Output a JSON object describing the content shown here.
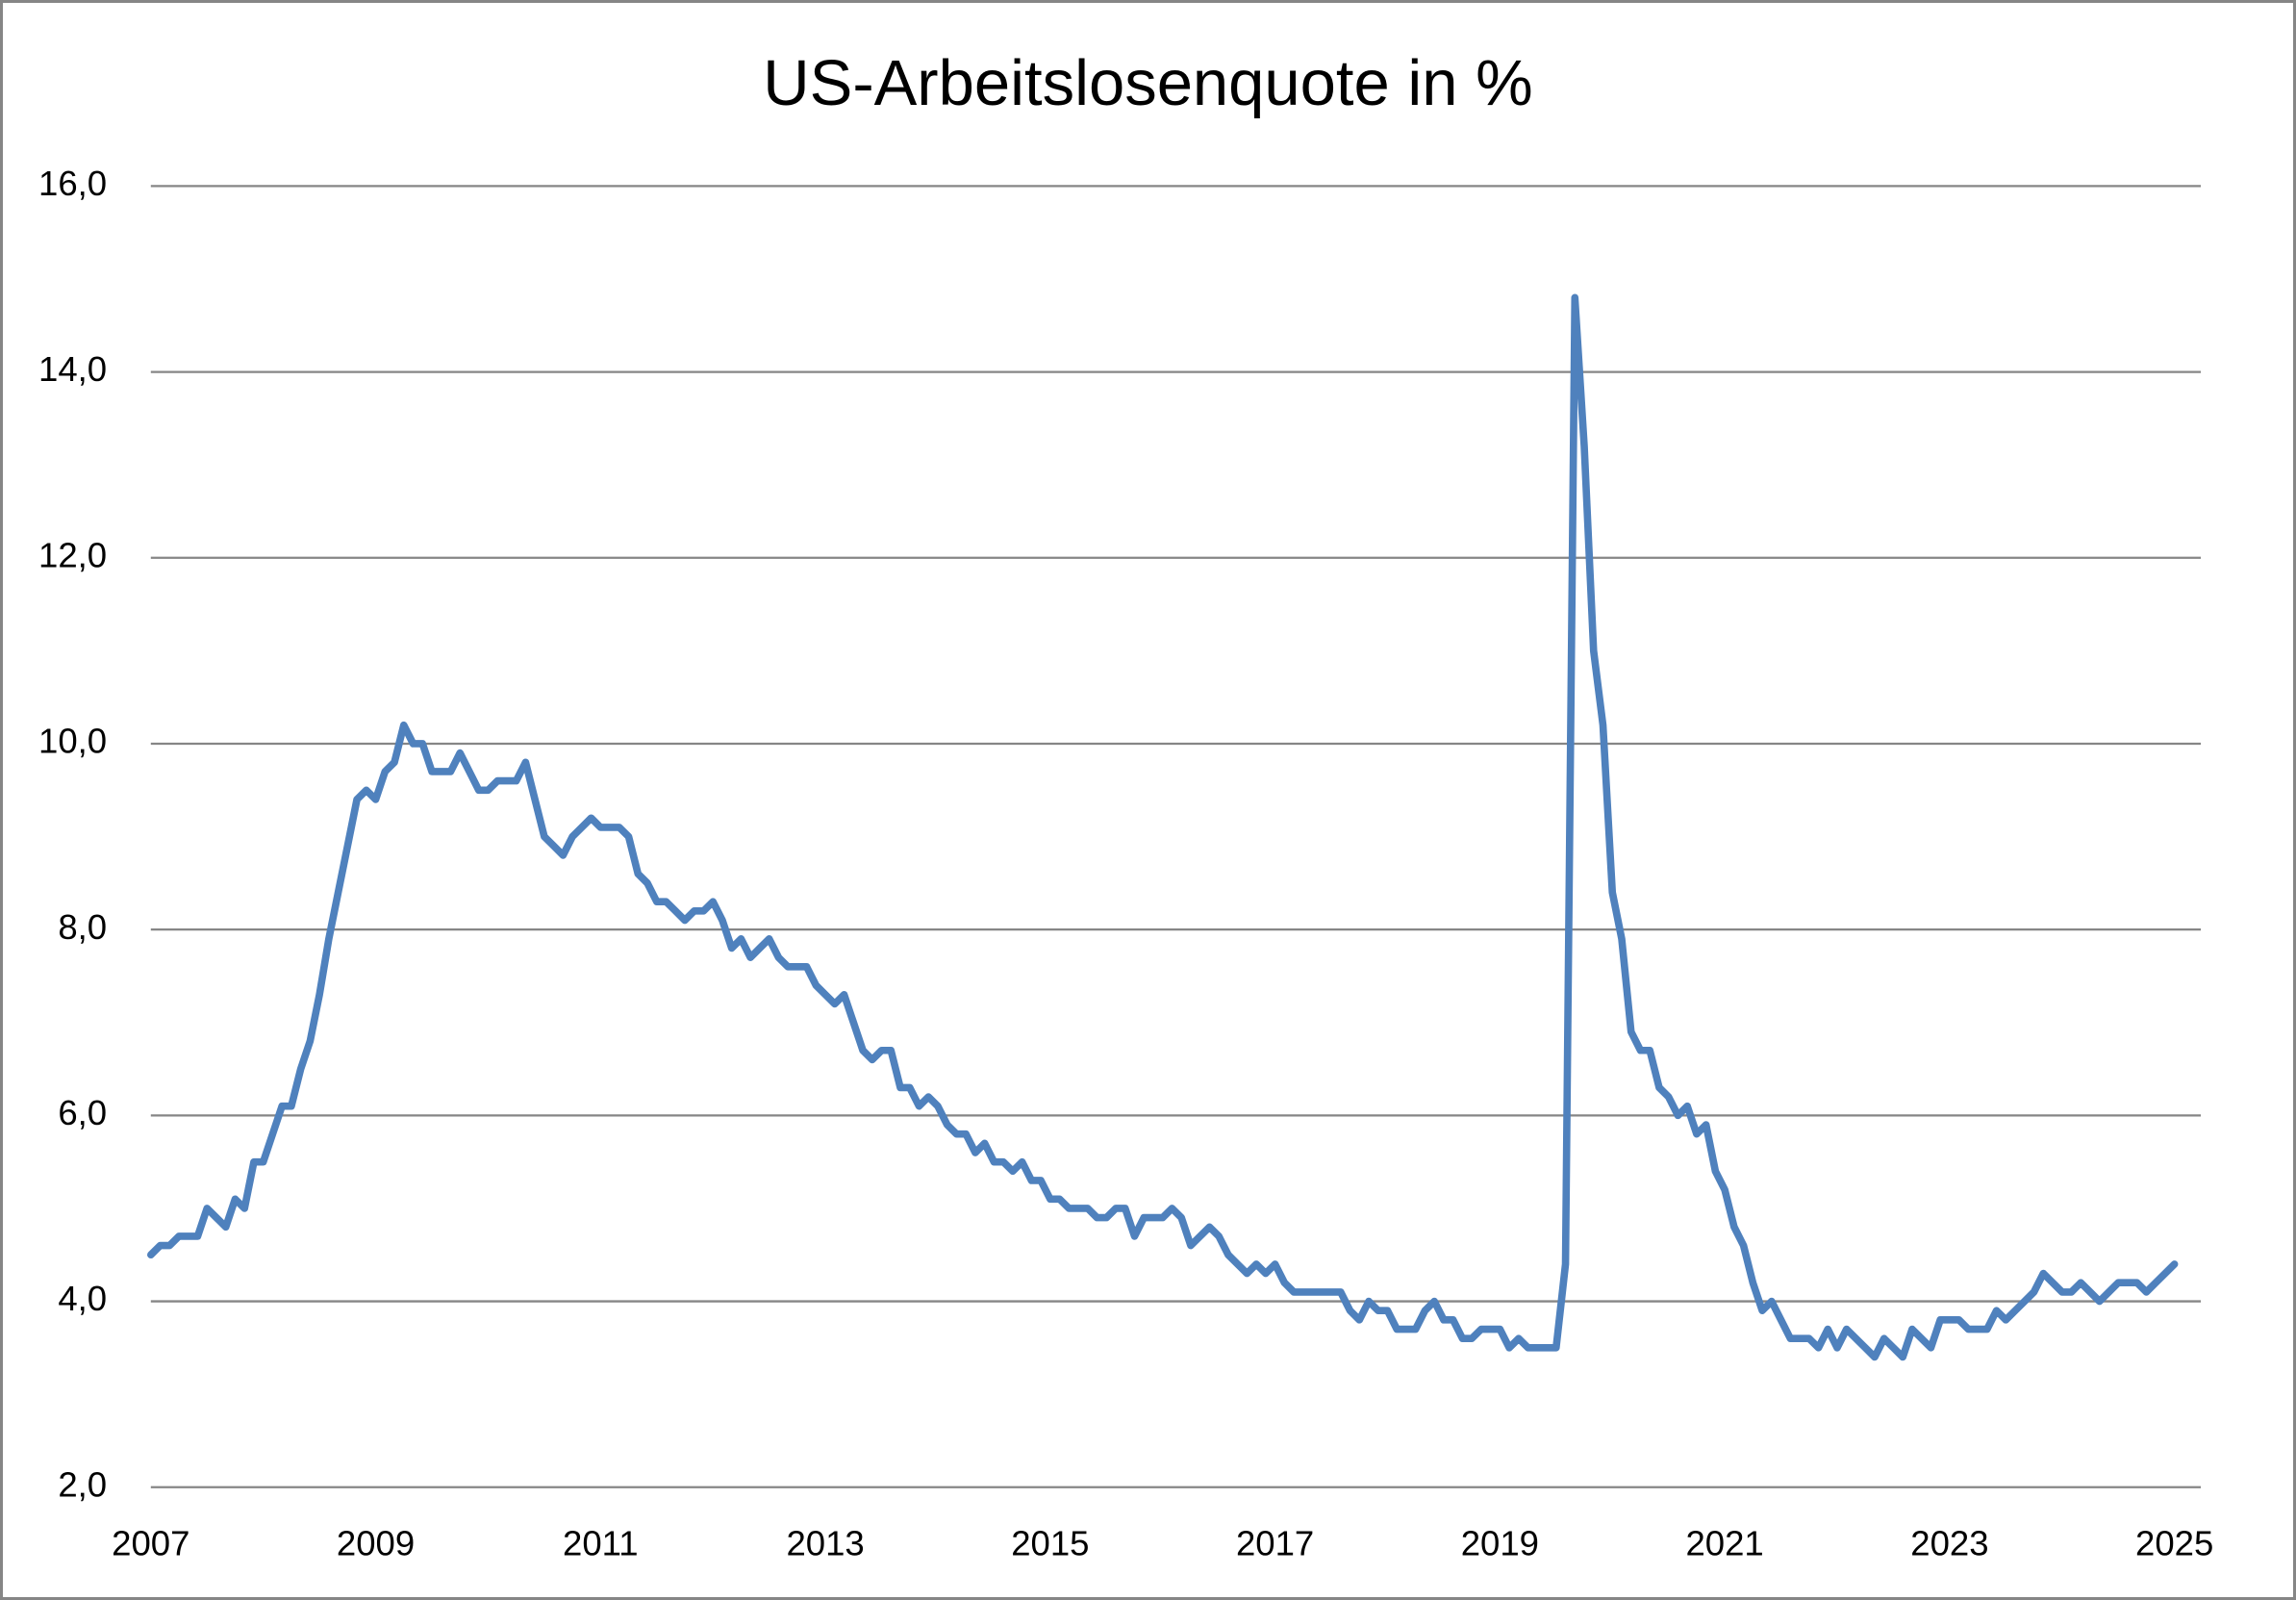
{
  "chart_data": {
    "type": "line",
    "title": "US-Arbeitslosenquote in %",
    "categories": [
      "2007",
      null,
      null,
      null,
      null,
      null,
      null,
      null,
      null,
      null,
      null,
      null,
      null,
      null,
      null,
      null,
      null,
      null,
      null,
      null,
      null,
      null,
      null,
      null,
      "2009",
      null,
      null,
      null,
      null,
      null,
      null,
      null,
      null,
      null,
      null,
      null,
      null,
      null,
      null,
      null,
      null,
      null,
      null,
      null,
      null,
      null,
      null,
      null,
      "2011",
      null,
      null,
      null,
      null,
      null,
      null,
      null,
      null,
      null,
      null,
      null,
      null,
      null,
      null,
      null,
      null,
      null,
      null,
      null,
      null,
      null,
      null,
      null,
      "2013",
      null,
      null,
      null,
      null,
      null,
      null,
      null,
      null,
      null,
      null,
      null,
      null,
      null,
      null,
      null,
      null,
      null,
      null,
      null,
      null,
      null,
      null,
      null,
      "2015",
      null,
      null,
      null,
      null,
      null,
      null,
      null,
      null,
      null,
      null,
      null,
      null,
      null,
      null,
      null,
      null,
      null,
      null,
      null,
      null,
      null,
      null,
      null,
      "2017",
      null,
      null,
      null,
      null,
      null,
      null,
      null,
      null,
      null,
      null,
      null,
      null,
      null,
      null,
      null,
      null,
      null,
      null,
      null,
      null,
      null,
      null,
      null,
      "2019",
      null,
      null,
      null,
      null,
      null,
      null,
      null,
      null,
      null,
      null,
      null,
      null,
      null,
      null,
      null,
      null,
      null,
      null,
      null,
      null,
      null,
      null,
      null,
      "2021",
      null,
      null,
      null,
      null,
      null,
      null,
      null,
      null,
      null,
      null,
      null,
      null,
      null,
      null,
      null,
      null,
      null,
      null,
      null,
      null,
      null,
      null,
      null,
      "2023",
      null,
      null,
      null,
      null,
      null,
      null,
      null,
      null,
      null,
      null,
      null,
      null,
      null,
      null,
      null,
      null,
      null,
      null,
      null,
      null,
      null,
      null,
      null,
      "2025"
    ],
    "values": [
      4.5,
      4.6,
      4.6,
      4.7,
      4.7,
      4.7,
      5.0,
      4.9,
      4.8,
      5.1,
      5.0,
      5.5,
      5.5,
      5.8,
      6.1,
      6.1,
      6.5,
      6.8,
      7.3,
      7.9,
      8.4,
      8.9,
      9.4,
      9.5,
      9.4,
      9.7,
      9.8,
      10.2,
      10.0,
      10.0,
      9.7,
      9.7,
      9.7,
      9.9,
      9.7,
      9.5,
      9.5,
      9.6,
      9.6,
      9.6,
      9.8,
      9.4,
      9.0,
      8.9,
      8.8,
      9.0,
      9.1,
      9.2,
      9.1,
      9.1,
      9.1,
      9.0,
      8.6,
      8.5,
      8.3,
      8.3,
      8.2,
      8.1,
      8.2,
      8.2,
      8.3,
      8.1,
      7.8,
      7.9,
      7.7,
      7.8,
      7.9,
      7.7,
      7.6,
      7.6,
      7.6,
      7.4,
      7.3,
      7.2,
      7.3,
      7.0,
      6.7,
      6.6,
      6.7,
      6.7,
      6.3,
      6.3,
      6.1,
      6.2,
      6.1,
      5.9,
      5.8,
      5.8,
      5.6,
      5.7,
      5.5,
      5.5,
      5.4,
      5.5,
      5.3,
      5.3,
      5.1,
      5.1,
      5.0,
      5.0,
      5.0,
      4.9,
      4.9,
      5.0,
      5.0,
      4.7,
      4.9,
      4.9,
      4.9,
      5.0,
      4.9,
      4.6,
      4.7,
      4.8,
      4.7,
      4.5,
      4.4,
      4.3,
      4.4,
      4.3,
      4.4,
      4.2,
      4.1,
      4.1,
      4.1,
      4.1,
      4.1,
      4.1,
      3.9,
      3.8,
      4.0,
      3.9,
      3.9,
      3.7,
      3.7,
      3.7,
      3.9,
      4.0,
      3.8,
      3.8,
      3.6,
      3.6,
      3.7,
      3.7,
      3.7,
      3.5,
      3.6,
      3.5,
      3.5,
      3.5,
      3.5,
      4.4,
      14.8,
      13.2,
      11.0,
      10.2,
      8.4,
      7.9,
      6.9,
      6.7,
      6.7,
      6.3,
      6.2,
      6.0,
      6.1,
      5.8,
      5.9,
      5.4,
      5.2,
      4.8,
      4.6,
      4.2,
      3.9,
      4.0,
      3.8,
      3.6,
      3.6,
      3.6,
      3.5,
      3.7,
      3.5,
      3.7,
      3.6,
      3.5,
      3.4,
      3.6,
      3.5,
      3.4,
      3.7,
      3.6,
      3.5,
      3.8,
      3.8,
      3.8,
      3.7,
      3.7,
      3.7,
      3.9,
      3.8,
      3.9,
      4.0,
      4.1,
      4.3,
      4.2,
      4.1,
      4.1,
      4.2,
      4.1,
      4.0,
      4.1,
      4.2,
      4.2,
      4.2,
      4.1,
      4.2,
      4.3,
      4.4
    ],
    "color": "#4f81bd",
    "ylim": [
      2,
      16
    ],
    "yticks": [
      {
        "value": 2,
        "label": "2,0"
      },
      {
        "value": 4,
        "label": "4,0"
      },
      {
        "value": 6,
        "label": "6,0"
      },
      {
        "value": 8,
        "label": "8,0"
      },
      {
        "value": 10,
        "label": "10,0"
      },
      {
        "value": 12,
        "label": "12,0"
      },
      {
        "value": 14,
        "label": "14,0"
      },
      {
        "value": 16,
        "label": "16,0"
      }
    ],
    "grid": true
  }
}
